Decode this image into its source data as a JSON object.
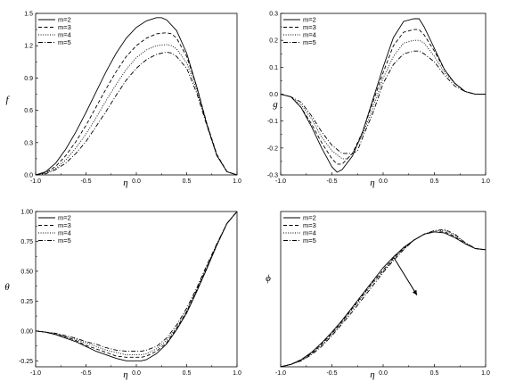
{
  "chart_data": [
    {
      "type": "line",
      "xlabel": "η",
      "ylabel": "f",
      "xlim": [
        -1.0,
        1.0
      ],
      "ylim": [
        0.0,
        1.5
      ],
      "xticks": [
        "-1.0",
        "-0.5",
        "0.0",
        "0.5",
        "1.0"
      ],
      "yticks": [
        "0.0",
        "0.3",
        "0.6",
        "0.9",
        "1.2",
        "1.5"
      ],
      "ytick_values": [
        0.0,
        0.3,
        0.6,
        0.9,
        1.2,
        1.5
      ],
      "legend": "top-left",
      "series": [
        {
          "name": "m=2",
          "dash": "solid",
          "x": [
            -1.0,
            -0.9,
            -0.8,
            -0.7,
            -0.6,
            -0.5,
            -0.4,
            -0.3,
            -0.2,
            -0.1,
            0.0,
            0.1,
            0.2,
            0.25,
            0.3,
            0.4,
            0.5,
            0.6,
            0.7,
            0.8,
            0.9,
            1.0
          ],
          "y": [
            0.0,
            0.03,
            0.11,
            0.24,
            0.4,
            0.58,
            0.77,
            0.96,
            1.13,
            1.27,
            1.37,
            1.43,
            1.46,
            1.46,
            1.44,
            1.34,
            1.13,
            0.82,
            0.47,
            0.18,
            0.03,
            0.0
          ]
        },
        {
          "name": "m=3",
          "dash": "dashed",
          "x": [
            -1.0,
            -0.9,
            -0.8,
            -0.7,
            -0.6,
            -0.5,
            -0.4,
            -0.3,
            -0.2,
            -0.1,
            0.0,
            0.1,
            0.2,
            0.3,
            0.35,
            0.4,
            0.5,
            0.6,
            0.7,
            0.8,
            0.9,
            1.0
          ],
          "y": [
            0.0,
            0.02,
            0.08,
            0.18,
            0.31,
            0.46,
            0.63,
            0.8,
            0.96,
            1.1,
            1.2,
            1.27,
            1.31,
            1.32,
            1.31,
            1.27,
            1.1,
            0.82,
            0.48,
            0.19,
            0.03,
            0.0
          ]
        },
        {
          "name": "m=4",
          "dash": "dotted",
          "x": [
            -1.0,
            -0.9,
            -0.8,
            -0.7,
            -0.6,
            -0.5,
            -0.4,
            -0.3,
            -0.2,
            -0.1,
            0.0,
            0.1,
            0.2,
            0.3,
            0.35,
            0.4,
            0.5,
            0.6,
            0.7,
            0.8,
            0.9,
            1.0
          ],
          "y": [
            0.0,
            0.02,
            0.06,
            0.14,
            0.25,
            0.38,
            0.53,
            0.69,
            0.84,
            0.98,
            1.09,
            1.16,
            1.2,
            1.21,
            1.2,
            1.17,
            1.04,
            0.79,
            0.47,
            0.18,
            0.03,
            0.0
          ]
        },
        {
          "name": "m=5",
          "dash": "dashdot",
          "x": [
            -1.0,
            -0.9,
            -0.8,
            -0.7,
            -0.6,
            -0.5,
            -0.4,
            -0.3,
            -0.2,
            -0.1,
            0.0,
            0.1,
            0.2,
            0.3,
            0.35,
            0.4,
            0.5,
            0.6,
            0.7,
            0.8,
            0.9,
            1.0
          ],
          "y": [
            0.0,
            0.01,
            0.05,
            0.11,
            0.2,
            0.31,
            0.45,
            0.59,
            0.74,
            0.88,
            0.99,
            1.07,
            1.12,
            1.14,
            1.13,
            1.1,
            0.99,
            0.76,
            0.46,
            0.18,
            0.03,
            0.0
          ]
        }
      ]
    },
    {
      "type": "line",
      "xlabel": "η",
      "ylabel": "g",
      "xlim": [
        -1.0,
        1.0
      ],
      "ylim": [
        -0.3,
        0.3
      ],
      "xticks": [
        "-1.0",
        "-0.5",
        "0.0",
        "0.5",
        "1.0"
      ],
      "yticks": [
        "-0.3",
        "-0.2",
        "-0.1",
        "0.0",
        "0.1",
        "0.2",
        "0.3"
      ],
      "ytick_values": [
        -0.3,
        -0.2,
        -0.1,
        0.0,
        0.1,
        0.2,
        0.3
      ],
      "legend": "top-left",
      "series": [
        {
          "name": "m=2",
          "dash": "solid",
          "x": [
            -1.0,
            -0.9,
            -0.8,
            -0.7,
            -0.6,
            -0.5,
            -0.45,
            -0.4,
            -0.3,
            -0.2,
            -0.1,
            0.0,
            0.1,
            0.2,
            0.3,
            0.35,
            0.4,
            0.5,
            0.6,
            0.7,
            0.8,
            0.9,
            1.0
          ],
          "y": [
            0.0,
            -0.01,
            -0.05,
            -0.12,
            -0.2,
            -0.27,
            -0.29,
            -0.28,
            -0.23,
            -0.14,
            -0.02,
            0.1,
            0.21,
            0.27,
            0.28,
            0.28,
            0.25,
            0.17,
            0.09,
            0.04,
            0.01,
            0.0,
            0.0
          ]
        },
        {
          "name": "m=3",
          "dash": "dashed",
          "x": [
            -1.0,
            -0.9,
            -0.8,
            -0.7,
            -0.6,
            -0.5,
            -0.45,
            -0.4,
            -0.3,
            -0.2,
            -0.1,
            0.0,
            0.1,
            0.2,
            0.3,
            0.35,
            0.4,
            0.5,
            0.6,
            0.7,
            0.8,
            0.9,
            1.0
          ],
          "y": [
            0.0,
            -0.01,
            -0.05,
            -0.11,
            -0.18,
            -0.24,
            -0.26,
            -0.26,
            -0.22,
            -0.14,
            -0.03,
            0.08,
            0.18,
            0.23,
            0.24,
            0.24,
            0.22,
            0.16,
            0.09,
            0.04,
            0.01,
            0.0,
            0.0
          ]
        },
        {
          "name": "m=4",
          "dash": "dotted",
          "x": [
            -1.0,
            -0.9,
            -0.8,
            -0.7,
            -0.6,
            -0.5,
            -0.4,
            -0.35,
            -0.3,
            -0.2,
            -0.1,
            0.0,
            0.1,
            0.2,
            0.3,
            0.35,
            0.4,
            0.5,
            0.6,
            0.7,
            0.8,
            0.9,
            1.0
          ],
          "y": [
            0.0,
            -0.01,
            -0.04,
            -0.09,
            -0.16,
            -0.21,
            -0.24,
            -0.24,
            -0.22,
            -0.15,
            -0.05,
            0.06,
            0.14,
            0.19,
            0.2,
            0.2,
            0.19,
            0.14,
            0.08,
            0.04,
            0.01,
            0.0,
            0.0
          ]
        },
        {
          "name": "m=5",
          "dash": "dashdot",
          "x": [
            -1.0,
            -0.9,
            -0.8,
            -0.7,
            -0.6,
            -0.5,
            -0.4,
            -0.3,
            -0.25,
            -0.2,
            -0.1,
            0.0,
            0.1,
            0.2,
            0.3,
            0.35,
            0.4,
            0.5,
            0.6,
            0.7,
            0.8,
            0.9,
            1.0
          ],
          "y": [
            0.0,
            -0.01,
            -0.03,
            -0.08,
            -0.14,
            -0.19,
            -0.22,
            -0.22,
            -0.21,
            -0.16,
            -0.07,
            0.04,
            0.11,
            0.15,
            0.16,
            0.16,
            0.15,
            0.12,
            0.07,
            0.03,
            0.01,
            0.0,
            0.0
          ]
        }
      ]
    },
    {
      "type": "line",
      "xlabel": "η",
      "ylabel": "θ",
      "xlim": [
        -1.0,
        1.0
      ],
      "ylim": [
        -0.3,
        1.0
      ],
      "xticks": [
        "-1.0",
        "-0.5",
        "0.0",
        "0.5",
        "1.0"
      ],
      "yticks": [
        "-0.25",
        "0.00",
        "0.25",
        "0.50",
        "0.75",
        "1.00"
      ],
      "ytick_values": [
        -0.25,
        0.0,
        0.25,
        0.5,
        0.75,
        1.0
      ],
      "legend": "top-left",
      "series": [
        {
          "name": "m=2",
          "dash": "solid",
          "x": [
            -1.0,
            -0.9,
            -0.8,
            -0.7,
            -0.6,
            -0.5,
            -0.4,
            -0.3,
            -0.2,
            -0.1,
            0.0,
            0.05,
            0.1,
            0.2,
            0.3,
            0.4,
            0.5,
            0.6,
            0.7,
            0.8,
            0.9,
            1.0
          ],
          "y": [
            0.0,
            -0.01,
            -0.03,
            -0.06,
            -0.09,
            -0.13,
            -0.17,
            -0.2,
            -0.23,
            -0.25,
            -0.25,
            -0.25,
            -0.24,
            -0.19,
            -0.11,
            0.01,
            0.15,
            0.33,
            0.52,
            0.72,
            0.9,
            1.0
          ]
        },
        {
          "name": "m=3",
          "dash": "dashed",
          "x": [
            -1.0,
            -0.9,
            -0.8,
            -0.7,
            -0.6,
            -0.5,
            -0.4,
            -0.3,
            -0.2,
            -0.1,
            0.0,
            0.05,
            0.1,
            0.2,
            0.3,
            0.4,
            0.5,
            0.6,
            0.7,
            0.8,
            0.9,
            1.0
          ],
          "y": [
            0.0,
            -0.01,
            -0.03,
            -0.05,
            -0.08,
            -0.12,
            -0.15,
            -0.18,
            -0.21,
            -0.22,
            -0.22,
            -0.22,
            -0.21,
            -0.17,
            -0.1,
            0.02,
            0.16,
            0.34,
            0.53,
            0.72,
            0.9,
            1.0
          ]
        },
        {
          "name": "m=4",
          "dash": "dotted",
          "x": [
            -1.0,
            -0.9,
            -0.8,
            -0.7,
            -0.6,
            -0.5,
            -0.4,
            -0.3,
            -0.2,
            -0.1,
            0.0,
            0.05,
            0.1,
            0.2,
            0.3,
            0.4,
            0.5,
            0.6,
            0.7,
            0.8,
            0.9,
            1.0
          ],
          "y": [
            0.0,
            -0.01,
            -0.02,
            -0.05,
            -0.07,
            -0.1,
            -0.13,
            -0.16,
            -0.18,
            -0.2,
            -0.2,
            -0.2,
            -0.19,
            -0.15,
            -0.08,
            0.03,
            0.17,
            0.35,
            0.54,
            0.73,
            0.9,
            1.0
          ]
        },
        {
          "name": "m=5",
          "dash": "dashdot",
          "x": [
            -1.0,
            -0.9,
            -0.8,
            -0.7,
            -0.6,
            -0.5,
            -0.4,
            -0.3,
            -0.2,
            -0.1,
            0.0,
            0.05,
            0.1,
            0.2,
            0.3,
            0.4,
            0.5,
            0.6,
            0.7,
            0.8,
            0.9,
            1.0
          ],
          "y": [
            0.0,
            -0.01,
            -0.02,
            -0.04,
            -0.06,
            -0.09,
            -0.11,
            -0.14,
            -0.16,
            -0.17,
            -0.17,
            -0.17,
            -0.16,
            -0.13,
            -0.06,
            0.05,
            0.19,
            0.36,
            0.55,
            0.73,
            0.9,
            1.0
          ]
        }
      ]
    },
    {
      "type": "line",
      "xlabel": "η",
      "ylabel": "ϕ",
      "xlim": [
        -1.0,
        1.0
      ],
      "ylim": [
        0.0,
        1.3
      ],
      "xticks": [
        "-1.0",
        "-0.5",
        "0.0",
        "0.5",
        "1.0"
      ],
      "yticks": [],
      "ytick_values": [],
      "legend": "top-left",
      "annotation": "arrow",
      "series": [
        {
          "name": "m=2",
          "dash": "solid",
          "x": [
            -1.0,
            -0.9,
            -0.8,
            -0.7,
            -0.6,
            -0.5,
            -0.4,
            -0.3,
            -0.2,
            -0.1,
            0.0,
            0.1,
            0.2,
            0.3,
            0.4,
            0.5,
            0.6,
            0.7,
            0.8,
            0.9,
            1.0
          ],
          "y": [
            0.0,
            0.02,
            0.06,
            0.12,
            0.2,
            0.29,
            0.39,
            0.5,
            0.61,
            0.72,
            0.83,
            0.92,
            1.0,
            1.06,
            1.11,
            1.13,
            1.12,
            1.08,
            1.03,
            0.99,
            0.98
          ]
        },
        {
          "name": "m=3",
          "dash": "dashed",
          "x": [
            -1.0,
            -0.9,
            -0.8,
            -0.7,
            -0.6,
            -0.5,
            -0.4,
            -0.3,
            -0.2,
            -0.1,
            0.0,
            0.1,
            0.2,
            0.3,
            0.4,
            0.5,
            0.6,
            0.7,
            0.8,
            0.9,
            1.0
          ],
          "y": [
            0.0,
            0.02,
            0.06,
            0.11,
            0.19,
            0.28,
            0.38,
            0.49,
            0.6,
            0.71,
            0.81,
            0.91,
            0.99,
            1.06,
            1.11,
            1.13,
            1.13,
            1.09,
            1.03,
            0.99,
            0.98
          ]
        },
        {
          "name": "m=4",
          "dash": "dotted",
          "x": [
            -1.0,
            -0.9,
            -0.8,
            -0.7,
            -0.6,
            -0.5,
            -0.4,
            -0.3,
            -0.2,
            -0.1,
            0.0,
            0.1,
            0.2,
            0.3,
            0.4,
            0.5,
            0.6,
            0.7,
            0.8,
            0.9,
            1.0
          ],
          "y": [
            0.0,
            0.02,
            0.05,
            0.11,
            0.18,
            0.27,
            0.37,
            0.48,
            0.59,
            0.7,
            0.8,
            0.9,
            0.99,
            1.06,
            1.11,
            1.14,
            1.14,
            1.1,
            1.04,
            0.99,
            0.98
          ]
        },
        {
          "name": "m=5",
          "dash": "dashdot",
          "x": [
            -1.0,
            -0.9,
            -0.8,
            -0.7,
            -0.6,
            -0.5,
            -0.4,
            -0.3,
            -0.2,
            -0.1,
            0.0,
            0.1,
            0.2,
            0.3,
            0.4,
            0.5,
            0.6,
            0.7,
            0.8,
            0.9,
            1.0
          ],
          "y": [
            0.0,
            0.02,
            0.05,
            0.1,
            0.17,
            0.26,
            0.36,
            0.46,
            0.57,
            0.68,
            0.79,
            0.89,
            0.98,
            1.06,
            1.11,
            1.14,
            1.15,
            1.11,
            1.04,
            0.99,
            0.98
          ]
        }
      ]
    }
  ]
}
